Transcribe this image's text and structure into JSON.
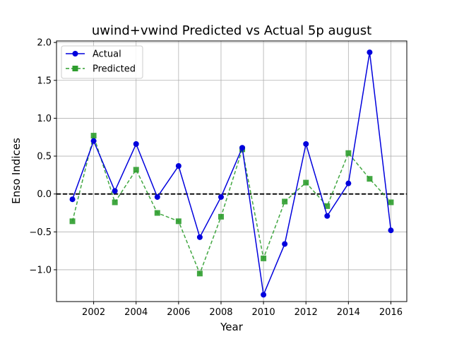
{
  "chart_data": {
    "type": "line",
    "title": "uwind+vwind Predicted vs Actual 5p august",
    "xlabel": "Year",
    "ylabel": "Enso Indices",
    "x": [
      2001,
      2002,
      2003,
      2004,
      2005,
      2006,
      2007,
      2008,
      2009,
      2010,
      2011,
      2012,
      2013,
      2014,
      2015,
      2016
    ],
    "xlim": [
      2000.25,
      2016.75
    ],
    "ylim": [
      -1.42,
      2.02
    ],
    "xticks": [
      "2002",
      "2004",
      "2006",
      "2008",
      "2010",
      "2012",
      "2014",
      "2016"
    ],
    "yticks": [
      "−1.0",
      "−0.5",
      "0.0",
      "0.5",
      "1.0",
      "1.5",
      "2.0"
    ],
    "grid": true,
    "legend_position": "top-left",
    "reference_line": {
      "y": 0.0,
      "style": "dashed",
      "color": "#000000"
    },
    "series": [
      {
        "name": "Actual",
        "color": "#0000dd",
        "marker": "circle",
        "line_style": "solid",
        "values": [
          -0.07,
          0.7,
          0.04,
          0.66,
          -0.04,
          0.37,
          -0.57,
          -0.04,
          0.61,
          -1.33,
          -0.66,
          0.66,
          -0.29,
          0.14,
          1.87,
          -0.48
        ]
      },
      {
        "name": "Predicted",
        "color": "#2e9d2e",
        "marker": "square",
        "line_style": "dashed",
        "values": [
          -0.36,
          0.77,
          -0.11,
          0.32,
          -0.25,
          -0.36,
          -1.05,
          -0.3,
          0.59,
          -0.85,
          -0.1,
          0.15,
          -0.16,
          0.54,
          0.2,
          -0.11
        ]
      }
    ]
  }
}
